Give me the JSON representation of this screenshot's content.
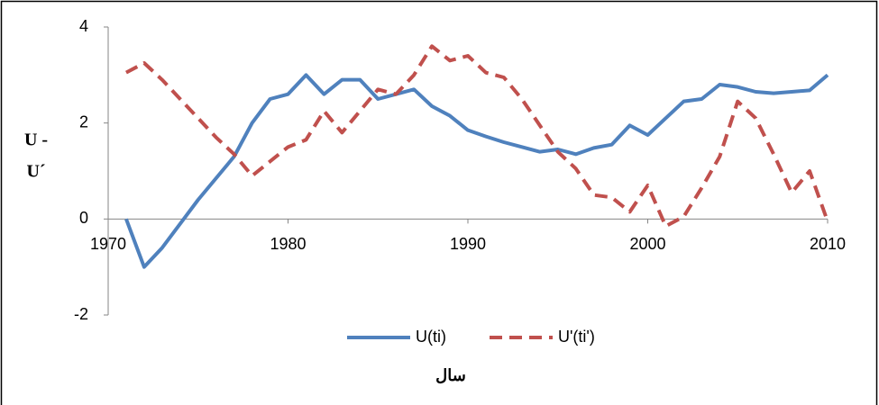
{
  "chart_data": {
    "type": "line",
    "ylabel": [
      "U -",
      "U´"
    ],
    "xlabel": "سال",
    "x": [
      1971,
      1972,
      1973,
      1974,
      1975,
      1976,
      1977,
      1978,
      1979,
      1980,
      1981,
      1982,
      1983,
      1984,
      1985,
      1986,
      1987,
      1988,
      1989,
      1990,
      1991,
      1992,
      1993,
      1994,
      1995,
      1996,
      1997,
      1998,
      1999,
      2000,
      2001,
      2002,
      2003,
      2004,
      2005,
      2006,
      2007,
      2008,
      2009,
      2010
    ],
    "series": [
      {
        "name": "U(ti)",
        "color": "#4f81bd",
        "dash": false,
        "values": [
          0,
          -1.0,
          -0.6,
          -0.1,
          0.4,
          0.85,
          1.3,
          2.0,
          2.5,
          2.6,
          3.0,
          2.6,
          2.9,
          2.9,
          2.5,
          2.6,
          2.7,
          2.35,
          2.15,
          1.85,
          1.72,
          1.6,
          1.5,
          1.4,
          1.45,
          1.35,
          1.48,
          1.55,
          1.95,
          1.75,
          2.1,
          2.45,
          2.5,
          2.8,
          2.75,
          2.65,
          2.62,
          2.65,
          2.68,
          3.0
        ]
      },
      {
        "name": "U'(ti')",
        "color": "#c0504d",
        "dash": true,
        "values": [
          3.05,
          3.25,
          2.9,
          2.5,
          2.1,
          1.7,
          1.35,
          0.9,
          1.2,
          1.5,
          1.65,
          2.25,
          1.8,
          2.25,
          2.7,
          2.6,
          3.0,
          3.6,
          3.3,
          3.4,
          3.05,
          2.95,
          2.5,
          1.95,
          1.4,
          1.05,
          0.5,
          0.45,
          0.15,
          0.7,
          -0.15,
          0.05,
          0.65,
          1.3,
          2.45,
          2.1,
          1.35,
          0.55,
          1.0,
          -0.05
        ]
      }
    ],
    "xlim": [
      1970,
      2010
    ],
    "xticks": [
      1970,
      1980,
      1990,
      2000,
      2010
    ],
    "ylim": [
      -2,
      4
    ],
    "yticks": [
      -2,
      0,
      2,
      4
    ]
  }
}
